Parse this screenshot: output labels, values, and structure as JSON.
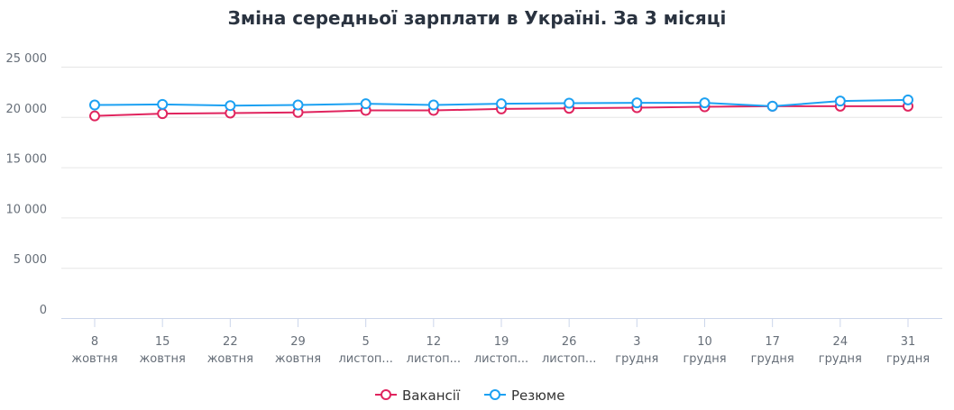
{
  "chart_data": {
    "type": "line",
    "title": "Зміна середньої зарплати в Україні. За 3 місяці",
    "categories": [
      [
        "8",
        "жовтня"
      ],
      [
        "15",
        "жовтня"
      ],
      [
        "22",
        "жовтня"
      ],
      [
        "29",
        "жовтня"
      ],
      [
        "5",
        "листоп..."
      ],
      [
        "12",
        "листоп..."
      ],
      [
        "19",
        "листоп..."
      ],
      [
        "26",
        "листоп..."
      ],
      [
        "3",
        "грудня"
      ],
      [
        "10",
        "грудня"
      ],
      [
        "17",
        "грудня"
      ],
      [
        "24",
        "грудня"
      ],
      [
        "31",
        "грудня"
      ]
    ],
    "series": [
      {
        "name": "Вакансії",
        "color": "#e0245e",
        "values": [
          20100,
          20330,
          20390,
          20450,
          20650,
          20650,
          20800,
          20860,
          20920,
          21010,
          21070,
          21070,
          21070
        ]
      },
      {
        "name": "Резюме",
        "color": "#1da1f2",
        "values": [
          21190,
          21250,
          21130,
          21190,
          21310,
          21190,
          21310,
          21370,
          21400,
          21400,
          21070,
          21580,
          21700
        ]
      }
    ],
    "yticks": [
      "0",
      "5 000",
      "10 000",
      "15 000",
      "20 000",
      "25 000"
    ],
    "ylim": [
      0,
      25000
    ],
    "grid": true,
    "legend": "bottom"
  }
}
